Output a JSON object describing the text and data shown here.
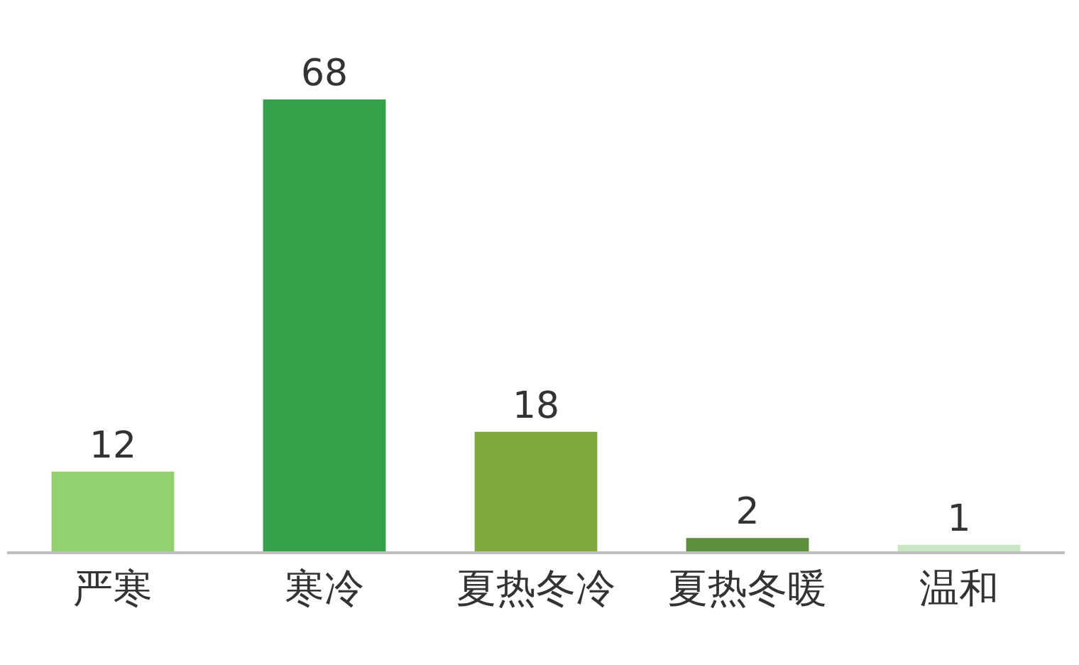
{
  "chart_data": {
    "type": "bar",
    "categories": [
      "严寒",
      "寒冷",
      "夏热冬冷",
      "夏热冬暖",
      "温和"
    ],
    "values": [
      12,
      68,
      18,
      2,
      1
    ],
    "colors": [
      "#92d16e",
      "#33a24b",
      "#80a83d",
      "#5b8f3b",
      "#c9e7c3"
    ],
    "data_labels": true
  }
}
